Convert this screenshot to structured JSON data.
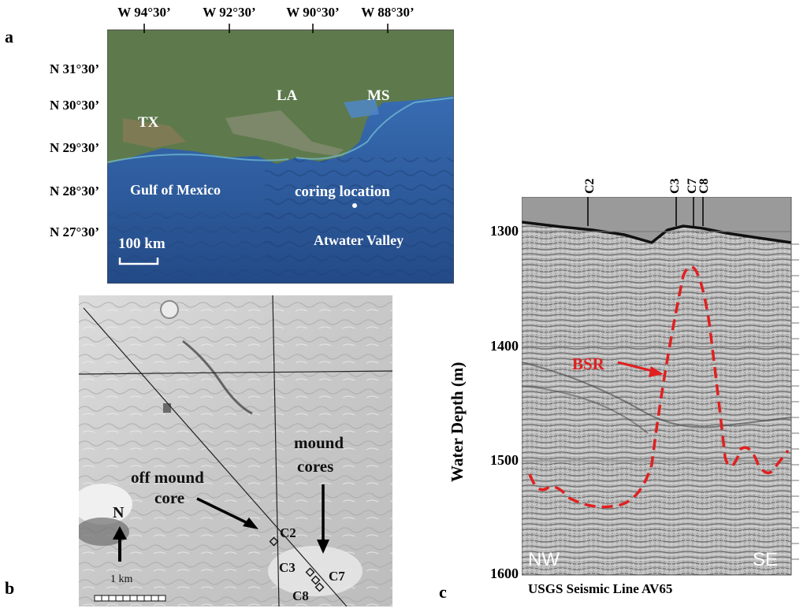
{
  "panels": {
    "a": {
      "label": "a",
      "longitudes": [
        "W 94°30’",
        "W 92°30’",
        "W 90°30’",
        "W 88°30’"
      ],
      "latitudes": [
        "N 31°30’",
        "N 30°30’",
        "N 29°30’",
        "N 28°30’",
        "N 27°30’"
      ],
      "states": [
        "TX",
        "LA",
        "MS"
      ],
      "gulf": "Gulf of Mexico",
      "coring": "coring location",
      "valley": "Atwater Valley",
      "scale": "100 km",
      "colors": {
        "land": "#5e7a4c",
        "shelf": "#3f78c2",
        "deep": "#2b4f86"
      }
    },
    "b": {
      "label": "b",
      "off_mound_1": "off mound",
      "off_mound_2": "core",
      "mound_1": "mound",
      "mound_2": "cores",
      "north": "N",
      "scale": "1 km",
      "cores": [
        "C2",
        "C3",
        "C7",
        "C8"
      ]
    },
    "c": {
      "label": "c",
      "cores": [
        "C2",
        "C3",
        "C7",
        "C8"
      ],
      "depths": [
        "1300",
        "1400",
        "1500",
        "1600"
      ],
      "ylabel": "Water Depth (m)",
      "bsr": "BSR",
      "nw": "NW",
      "se": "SE",
      "caption": "USGS Seismic Line AV65",
      "colors": {
        "bsr": "#e02020",
        "water": "#9a9a9a"
      }
    }
  }
}
